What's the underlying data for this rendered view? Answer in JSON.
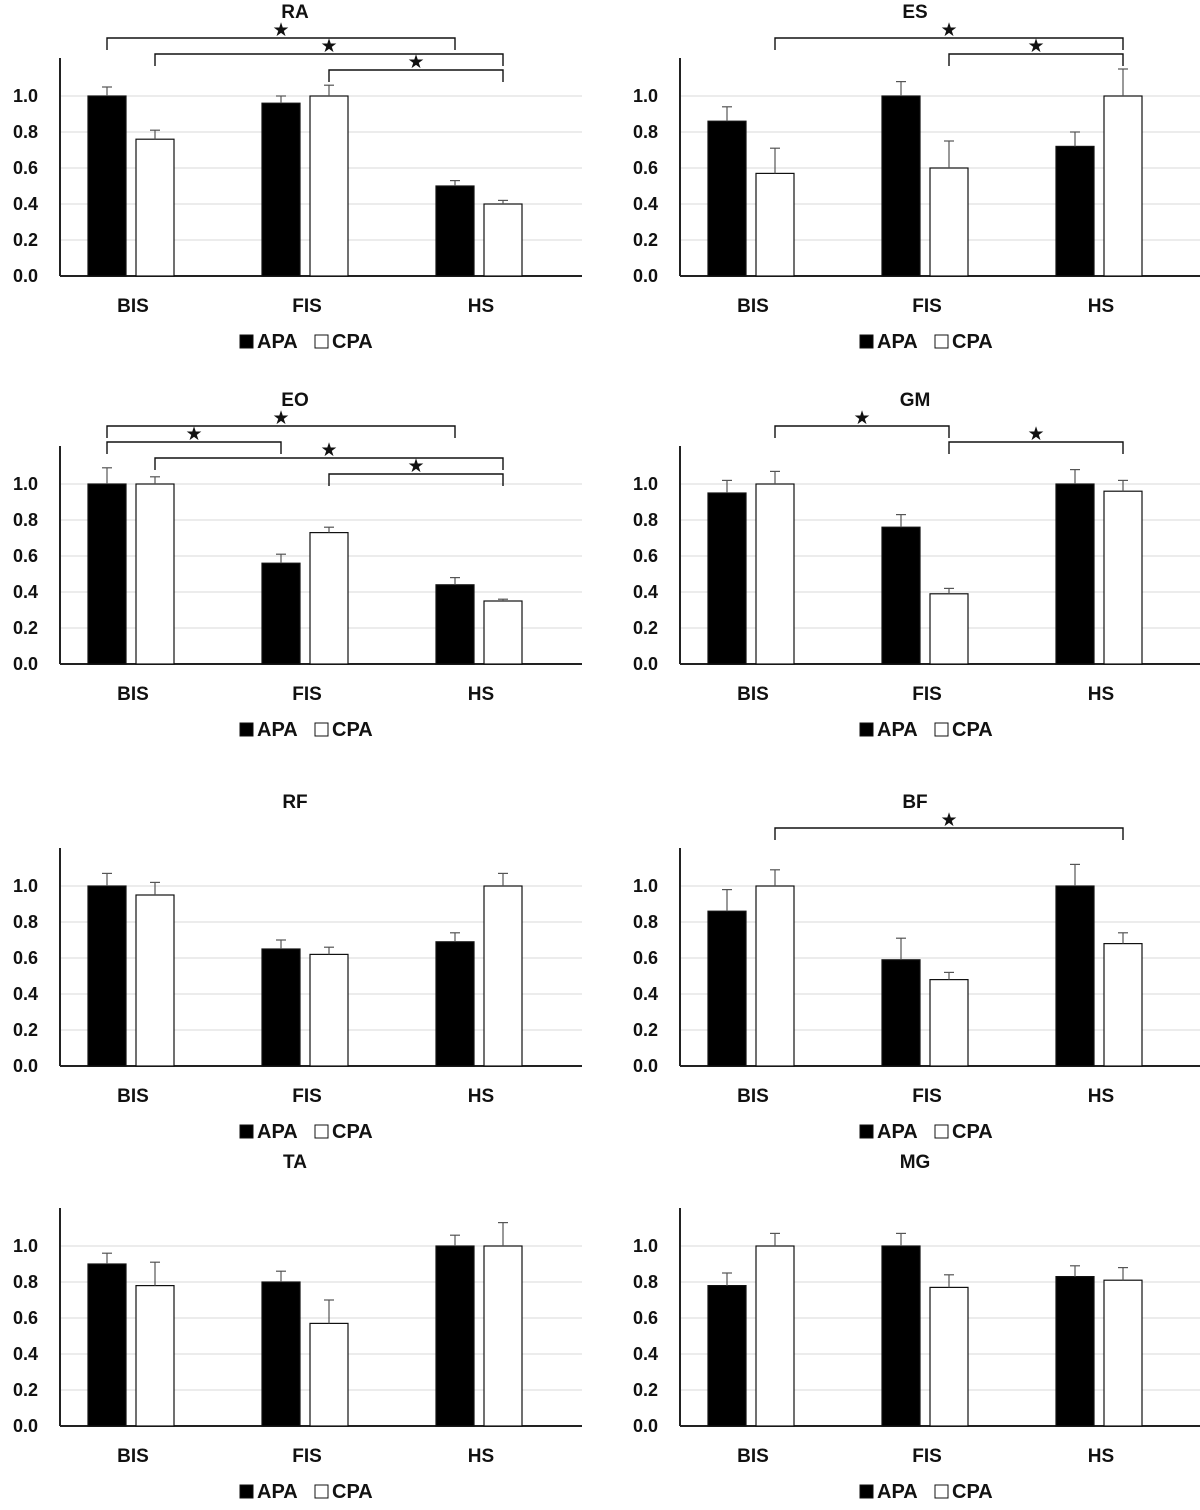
{
  "legend": {
    "apa": "APA",
    "cpa": "CPA"
  },
  "colors": {
    "apa": "#000000",
    "cpa": "#ffffff",
    "sig": "#111111"
  },
  "sig_symbol": "★",
  "chart_data": [
    {
      "type": "bar",
      "title": "RA",
      "categories": [
        "BIS",
        "FIS",
        "HS"
      ],
      "series": [
        {
          "name": "APA",
          "values": [
            1.0,
            0.96,
            0.5
          ],
          "errors": [
            0.05,
            0.04,
            0.03
          ]
        },
        {
          "name": "CPA",
          "values": [
            0.76,
            1.0,
            0.4
          ],
          "errors": [
            0.05,
            0.06,
            0.02
          ]
        }
      ],
      "ylim": [
        0,
        1.2
      ],
      "yticks": [
        "0.0",
        "0.2",
        "0.4",
        "0.6",
        "0.8",
        "1.0"
      ],
      "significance": [
        {
          "from": "BIS APA",
          "to": "HS APA"
        },
        {
          "from": "BIS CPA",
          "to": "HS CPA"
        },
        {
          "from": "FIS CPA",
          "to": "HS CPA"
        }
      ]
    },
    {
      "type": "bar",
      "title": "ES",
      "categories": [
        "BIS",
        "FIS",
        "HS"
      ],
      "series": [
        {
          "name": "APA",
          "values": [
            0.86,
            1.0,
            0.72
          ],
          "errors": [
            0.08,
            0.08,
            0.08
          ]
        },
        {
          "name": "CPA",
          "values": [
            0.57,
            0.6,
            1.0
          ],
          "errors": [
            0.14,
            0.15,
            0.15
          ]
        }
      ],
      "ylim": [
        0,
        1.2
      ],
      "yticks": [
        "0.0",
        "0.2",
        "0.4",
        "0.6",
        "0.8",
        "1.0"
      ],
      "significance": [
        {
          "from": "BIS CPA",
          "to": "HS CPA"
        },
        {
          "from": "FIS CPA",
          "to": "HS CPA"
        }
      ]
    },
    {
      "type": "bar",
      "title": "EO",
      "categories": [
        "BIS",
        "FIS",
        "HS"
      ],
      "series": [
        {
          "name": "APA",
          "values": [
            1.0,
            0.56,
            0.44
          ],
          "errors": [
            0.09,
            0.05,
            0.04
          ]
        },
        {
          "name": "CPA",
          "values": [
            1.0,
            0.73,
            0.35
          ],
          "errors": [
            0.04,
            0.03,
            0.01
          ]
        }
      ],
      "ylim": [
        0,
        1.2
      ],
      "yticks": [
        "0.0",
        "0.2",
        "0.4",
        "0.6",
        "0.8",
        "1.0"
      ],
      "significance": [
        {
          "from": "BIS APA",
          "to": "HS APA"
        },
        {
          "from": "BIS APA",
          "to": "FIS APA"
        },
        {
          "from": "BIS CPA",
          "to": "HS CPA"
        },
        {
          "from": "FIS CPA",
          "to": "HS CPA"
        }
      ]
    },
    {
      "type": "bar",
      "title": "GM",
      "categories": [
        "BIS",
        "FIS",
        "HS"
      ],
      "series": [
        {
          "name": "APA",
          "values": [
            0.95,
            0.76,
            1.0
          ],
          "errors": [
            0.07,
            0.07,
            0.08
          ]
        },
        {
          "name": "CPA",
          "values": [
            1.0,
            0.39,
            0.96
          ],
          "errors": [
            0.07,
            0.03,
            0.06
          ]
        }
      ],
      "ylim": [
        0,
        1.2
      ],
      "yticks": [
        "0.0",
        "0.2",
        "0.4",
        "0.6",
        "0.8",
        "1.0"
      ],
      "significance": [
        {
          "from": "BIS CPA",
          "to": "FIS CPA"
        },
        {
          "from": "FIS CPA",
          "to": "HS CPA"
        }
      ]
    },
    {
      "type": "bar",
      "title": "RF",
      "categories": [
        "BIS",
        "FIS",
        "HS"
      ],
      "series": [
        {
          "name": "APA",
          "values": [
            1.0,
            0.65,
            0.69
          ],
          "errors": [
            0.07,
            0.05,
            0.05
          ]
        },
        {
          "name": "CPA",
          "values": [
            0.95,
            0.62,
            1.0
          ],
          "errors": [
            0.07,
            0.04,
            0.07
          ]
        }
      ],
      "ylim": [
        0,
        1.2
      ],
      "yticks": [
        "0.0",
        "0.2",
        "0.4",
        "0.6",
        "0.8",
        "1.0"
      ],
      "significance": []
    },
    {
      "type": "bar",
      "title": "BF",
      "categories": [
        "BIS",
        "FIS",
        "HS"
      ],
      "series": [
        {
          "name": "APA",
          "values": [
            0.86,
            0.59,
            1.0
          ],
          "errors": [
            0.12,
            0.12,
            0.12
          ]
        },
        {
          "name": "CPA",
          "values": [
            1.0,
            0.48,
            0.68
          ],
          "errors": [
            0.09,
            0.04,
            0.06
          ]
        }
      ],
      "ylim": [
        0,
        1.2
      ],
      "yticks": [
        "0.0",
        "0.2",
        "0.4",
        "0.6",
        "0.8",
        "1.0"
      ],
      "significance": [
        {
          "from": "BIS CPA",
          "to": "HS CPA"
        }
      ]
    },
    {
      "type": "bar",
      "title": "TA",
      "categories": [
        "BIS",
        "FIS",
        "HS"
      ],
      "series": [
        {
          "name": "APA",
          "values": [
            0.9,
            0.8,
            1.0
          ],
          "errors": [
            0.06,
            0.06,
            0.06
          ]
        },
        {
          "name": "CPA",
          "values": [
            0.78,
            0.57,
            1.0
          ],
          "errors": [
            0.13,
            0.13,
            0.13
          ]
        }
      ],
      "ylim": [
        0,
        1.2
      ],
      "yticks": [
        "0.0",
        "0.2",
        "0.4",
        "0.6",
        "0.8",
        "1.0"
      ],
      "significance": []
    },
    {
      "type": "bar",
      "title": "MG",
      "categories": [
        "BIS",
        "FIS",
        "HS"
      ],
      "series": [
        {
          "name": "APA",
          "values": [
            0.78,
            1.0,
            0.83
          ],
          "errors": [
            0.07,
            0.07,
            0.06
          ]
        },
        {
          "name": "CPA",
          "values": [
            1.0,
            0.77,
            0.81
          ],
          "errors": [
            0.07,
            0.07,
            0.07
          ]
        }
      ],
      "ylim": [
        0,
        1.2
      ],
      "yticks": [
        "0.0",
        "0.2",
        "0.4",
        "0.6",
        "0.8",
        "1.0"
      ],
      "significance": []
    }
  ]
}
